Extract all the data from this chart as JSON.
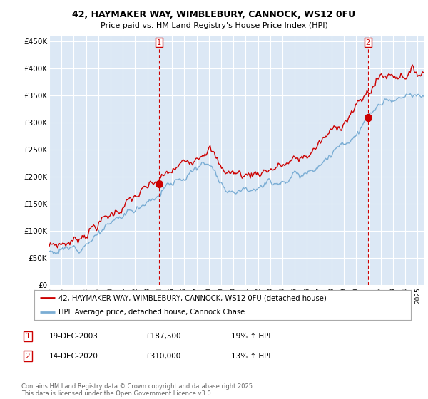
{
  "title_line1": "42, HAYMAKER WAY, WIMBLEBURY, CANNOCK, WS12 0FU",
  "title_line2": "Price paid vs. HM Land Registry's House Price Index (HPI)",
  "ylim": [
    0,
    460000
  ],
  "yticks": [
    0,
    50000,
    100000,
    150000,
    200000,
    250000,
    300000,
    350000,
    400000,
    450000
  ],
  "ytick_labels": [
    "£0",
    "£50K",
    "£100K",
    "£150K",
    "£200K",
    "£250K",
    "£300K",
    "£350K",
    "£400K",
    "£450K"
  ],
  "red_color": "#cc0000",
  "blue_color": "#7aadd4",
  "background_color": "#ffffff",
  "plot_bg_color": "#dce8f5",
  "grid_color": "#ffffff",
  "legend_label_red": "42, HAYMAKER WAY, WIMBLEBURY, CANNOCK, WS12 0FU (detached house)",
  "legend_label_blue": "HPI: Average price, detached house, Cannock Chase",
  "annotation1_label": "1",
  "annotation1_date": "19-DEC-2003",
  "annotation1_price": "£187,500",
  "annotation1_hpi": "19% ↑ HPI",
  "annotation2_label": "2",
  "annotation2_date": "14-DEC-2020",
  "annotation2_price": "£310,000",
  "annotation2_hpi": "13% ↑ HPI",
  "footer": "Contains HM Land Registry data © Crown copyright and database right 2025.\nThis data is licensed under the Open Government Licence v3.0.",
  "purchase1_x": 2003.96,
  "purchase1_y": 187500,
  "purchase2_x": 2020.95,
  "purchase2_y": 310000,
  "xmin": 1995.0,
  "xmax": 2025.5
}
